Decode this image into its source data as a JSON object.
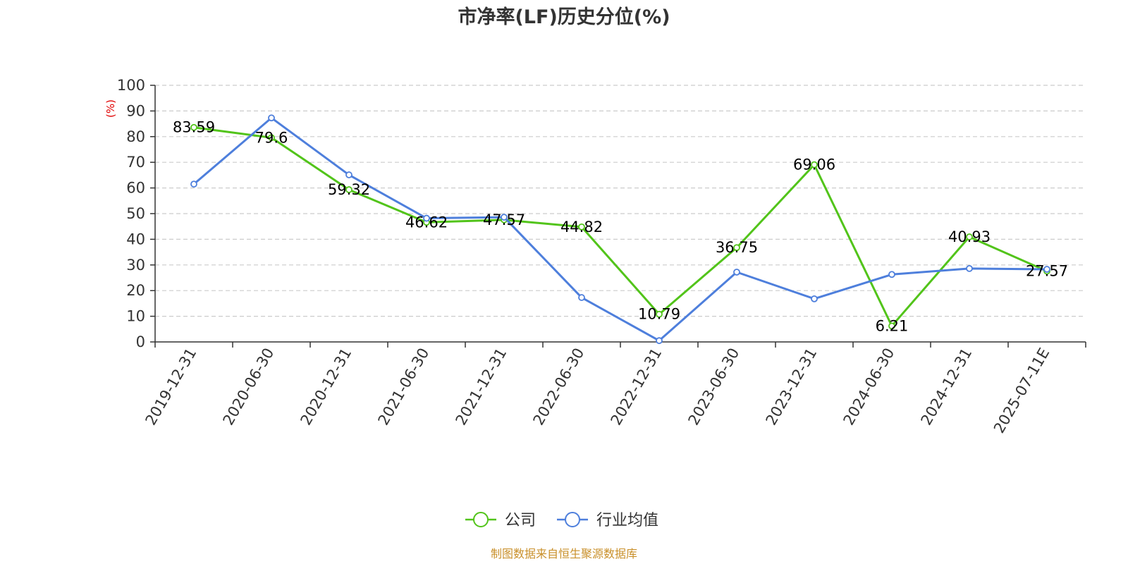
{
  "chart_data": {
    "type": "line",
    "title": "市净率(LF)历史分位(%)",
    "ylabel": "(%)",
    "ylim": [
      0,
      100
    ],
    "yticks": [
      0,
      10,
      20,
      30,
      40,
      50,
      60,
      70,
      80,
      90,
      100
    ],
    "categories": [
      "2019-12-31",
      "2020-06-30",
      "2020-12-31",
      "2021-06-30",
      "2021-12-31",
      "2022-06-30",
      "2022-12-31",
      "2023-06-30",
      "2023-12-31",
      "2024-06-30",
      "2024-12-31",
      "2025-07-11E"
    ],
    "series": [
      {
        "name": "公司",
        "color": "#52c41a",
        "values": [
          83.59,
          79.6,
          59.32,
          46.62,
          47.57,
          44.82,
          10.79,
          36.75,
          69.06,
          6.21,
          40.93,
          27.57
        ],
        "data_labels": [
          "83.59",
          "79.6",
          "59.32",
          "46.62",
          "47.57",
          "44.82",
          "10.79",
          "36.75",
          "69.06",
          "6.21",
          "40.93",
          "27.57"
        ]
      },
      {
        "name": "行业均值",
        "color": "#4e7fdc",
        "values": [
          61.5,
          87.3,
          65.1,
          48.2,
          48.6,
          17.3,
          0.5,
          27.2,
          16.8,
          26.3,
          28.6,
          28.3
        ]
      }
    ],
    "grid": true,
    "legend_position": "bottom"
  },
  "source_note": "制图数据来自恒生聚源数据库",
  "colors": {
    "unit_label": "#e00000",
    "source_note": "#c9902b",
    "axis": "#333333",
    "grid": "#cccccc"
  }
}
